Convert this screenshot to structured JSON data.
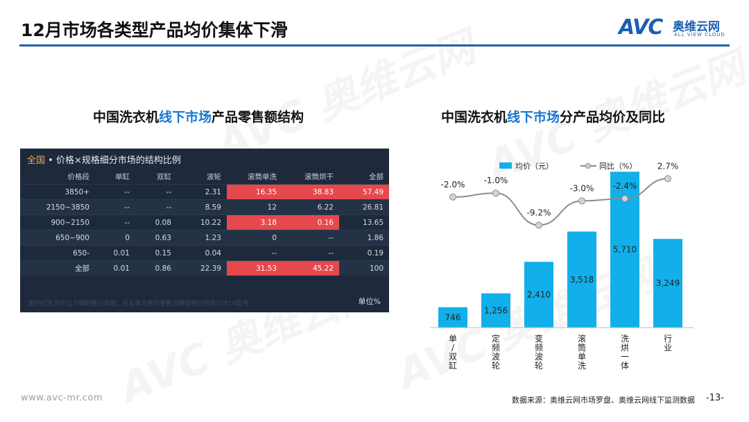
{
  "header": {
    "title": "12月市场各类型产品均价集体下滑",
    "logo": {
      "mark": "AVC",
      "cn": "奥维云网",
      "en": "ALL VIEW CLOUD"
    }
  },
  "left": {
    "title_pre": "中国洗衣机",
    "title_hl": "线下市场",
    "title_post": "产品零售额结构",
    "table": {
      "scope": "全国",
      "heading": " • 价格×规格细分市场的结构比例",
      "columns": [
        "价格段",
        "单缸",
        "双缸",
        "波轮",
        "滚筒单洗",
        "滚筒烘干",
        "全部"
      ],
      "rows": [
        {
          "cells": [
            "3850+",
            "--",
            "--",
            "2.31",
            "16.35",
            "38.83",
            "57.49"
          ],
          "hot": [
            4,
            5,
            6
          ]
        },
        {
          "cells": [
            "2150~3850",
            "--",
            "--",
            "8.59",
            "12",
            "6.22",
            "26.81"
          ],
          "hot": []
        },
        {
          "cells": [
            "900~2150",
            "--",
            "0.08",
            "10.22",
            "3.18",
            "0.16",
            "13.65"
          ],
          "hot": [
            4,
            5
          ]
        },
        {
          "cells": [
            "650~900",
            "0",
            "0.63",
            "1.23",
            "0",
            "--",
            "1.86"
          ],
          "hot": []
        },
        {
          "cells": [
            "650-",
            "0.01",
            "0.15",
            "0.04",
            "--",
            "--",
            "0.19"
          ],
          "hot": []
        },
        {
          "cells": [
            "全部",
            "0.01",
            "0.86",
            "22.39",
            "31.53",
            "45.22",
            "100"
          ],
          "hot": [
            4,
            5
          ]
        }
      ],
      "note": "图中红区为环比下降的细分市场；点击单元格可查看当期该细分市场TOP10型号",
      "unit": "单位%",
      "hot_color": "#e5484d"
    }
  },
  "right": {
    "title_pre": "中国洗衣机",
    "title_hl": "线下市场",
    "title_post": "分产品均价及同比"
  },
  "chart_data": {
    "type": "bar",
    "categories": [
      "单/双缸",
      "定频波轮",
      "变频波轮",
      "滚筒单洗",
      "洗烘一体",
      "行业"
    ],
    "series": [
      {
        "name": "均价（元）",
        "type": "bar",
        "values": [
          746,
          1256,
          2410,
          3518,
          5710,
          3249
        ],
        "color": "#11b0ea"
      },
      {
        "name": "同比（%）",
        "type": "line",
        "values": [
          -2.0,
          -1.0,
          -9.2,
          -3.0,
          -2.4,
          2.7
        ],
        "labels": [
          "-2.0%",
          "-1.0%",
          "-9.2%",
          "-3.0%",
          "-2.4%",
          "2.7%"
        ],
        "color": "#8c8c8c"
      }
    ],
    "value_labels": [
      "746",
      "1,256",
      "2,410",
      "3,518",
      "5,710",
      "3,249"
    ],
    "ylim": [
      0,
      6000
    ],
    "y2lim": [
      -35,
      4
    ],
    "legend": "top-center",
    "grid": false
  },
  "footer": {
    "site": "www.avc-mr.com",
    "source": "数据来源：奥维云网市场罗盘、奥维云网线下监测数据",
    "page": "-13-"
  }
}
